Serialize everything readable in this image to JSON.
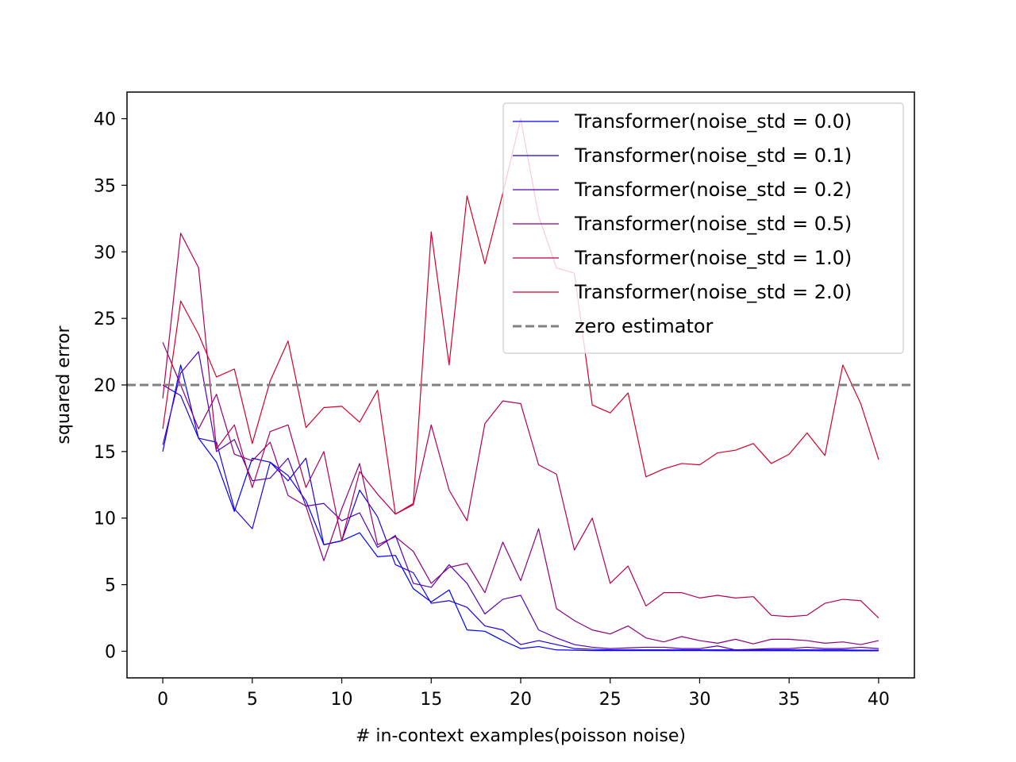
{
  "chart_data": {
    "type": "line",
    "title": "",
    "xlabel": "# in-context examples(poisson noise)",
    "ylabel": "squared error",
    "xlim": [
      -2,
      42
    ],
    "ylim": [
      -2,
      42
    ],
    "x_ticks": [
      0,
      5,
      10,
      15,
      20,
      25,
      30,
      35,
      40
    ],
    "y_ticks": [
      0,
      5,
      10,
      15,
      20,
      25,
      30,
      35,
      40
    ],
    "grid": false,
    "legend_position": "top-right",
    "x": [
      0,
      1,
      2,
      3,
      4,
      5,
      6,
      7,
      8,
      9,
      10,
      11,
      12,
      13,
      14,
      15,
      16,
      17,
      18,
      19,
      20,
      21,
      22,
      23,
      24,
      25,
      26,
      27,
      28,
      29,
      30,
      31,
      32,
      33,
      34,
      35,
      36,
      37,
      38,
      39,
      40
    ],
    "series": [
      {
        "name": "Transformer(noise_std = 0.0)",
        "color": "#0000ff",
        "values": [
          15.0,
          21.5,
          16.0,
          14.2,
          10.5,
          14.5,
          14.2,
          13.2,
          11.3,
          8.0,
          8.3,
          8.9,
          7.1,
          7.2,
          4.7,
          3.7,
          4.6,
          1.6,
          1.5,
          0.8,
          0.2,
          0.35,
          0.1,
          0.08,
          0.05,
          0.05,
          0.05,
          0.05,
          0.05,
          0.05,
          0.05,
          0.04,
          0.04,
          0.04,
          0.04,
          0.04,
          0.04,
          0.03,
          0.03,
          0.03,
          0.03
        ]
      },
      {
        "name": "Transformer(noise_std = 0.1)",
        "color": "#1a00e6",
        "values": [
          20.0,
          19.2,
          16.0,
          15.7,
          10.7,
          9.2,
          14.2,
          12.8,
          14.5,
          8.0,
          8.3,
          12.1,
          10.1,
          6.5,
          5.9,
          3.6,
          3.8,
          3.3,
          1.9,
          1.6,
          0.5,
          0.8,
          0.5,
          0.2,
          0.15,
          0.1,
          0.1,
          0.1,
          0.1,
          0.1,
          0.1,
          0.1,
          0.1,
          0.1,
          0.1,
          0.1,
          0.1,
          0.1,
          0.1,
          0.08,
          0.08
        ]
      },
      {
        "name": "Transformer(noise_std = 0.2)",
        "color": "#5200b8",
        "values": [
          15.5,
          20.9,
          22.5,
          15.0,
          15.9,
          12.8,
          13.0,
          14.5,
          10.9,
          11.1,
          9.8,
          10.4,
          7.8,
          8.7,
          5.1,
          4.8,
          6.5,
          5.1,
          2.8,
          3.9,
          4.2,
          1.6,
          1.0,
          0.5,
          0.3,
          0.2,
          0.25,
          0.3,
          0.3,
          0.2,
          0.2,
          0.4,
          0.1,
          0.15,
          0.2,
          0.2,
          0.3,
          0.2,
          0.2,
          0.3,
          0.2
        ]
      },
      {
        "name": "Transformer(noise_std = 0.5)",
        "color": "#8c0080",
        "values": [
          23.2,
          20.0,
          16.7,
          19.3,
          14.8,
          14.3,
          15.7,
          11.7,
          10.9,
          6.8,
          10.7,
          14.1,
          8.0,
          8.6,
          7.5,
          5.1,
          6.3,
          6.6,
          4.4,
          8.2,
          5.3,
          9.2,
          3.2,
          2.3,
          1.6,
          1.3,
          1.9,
          1.0,
          0.7,
          1.1,
          0.8,
          0.6,
          0.9,
          0.55,
          0.9,
          0.9,
          0.8,
          0.6,
          0.7,
          0.5,
          0.8
        ]
      },
      {
        "name": "Transformer(noise_std = 1.0)",
        "color": "#b30055",
        "values": [
          19.0,
          31.4,
          28.8,
          15.2,
          17.0,
          12.3,
          16.5,
          17.0,
          12.3,
          15.0,
          8.3,
          13.5,
          11.8,
          10.3,
          11.0,
          17.0,
          12.1,
          9.8,
          17.1,
          18.8,
          18.6,
          14.0,
          13.3,
          7.6,
          10.0,
          5.1,
          6.4,
          3.4,
          4.4,
          4.4,
          4.0,
          4.2,
          4.0,
          4.1,
          2.7,
          2.6,
          2.7,
          3.6,
          3.9,
          3.8,
          2.5
        ]
      },
      {
        "name": "Transformer(noise_std = 2.0)",
        "color": "#d4002a",
        "values": [
          16.7,
          26.3,
          23.8,
          20.6,
          21.2,
          15.6,
          20.3,
          23.3,
          16.8,
          18.3,
          18.4,
          17.2,
          19.6,
          10.3,
          11.1,
          31.5,
          21.5,
          34.2,
          29.1,
          34.4,
          40.0,
          32.7,
          28.8,
          28.4,
          18.5,
          17.9,
          19.4,
          13.1,
          13.7,
          14.1,
          14.0,
          14.9,
          15.1,
          15.6,
          14.1,
          14.8,
          16.4,
          14.7,
          21.5,
          18.6,
          14.4
        ]
      }
    ],
    "reference_line": {
      "name": "zero estimator",
      "y": 20,
      "color": "#808080",
      "style": "dashed"
    }
  }
}
